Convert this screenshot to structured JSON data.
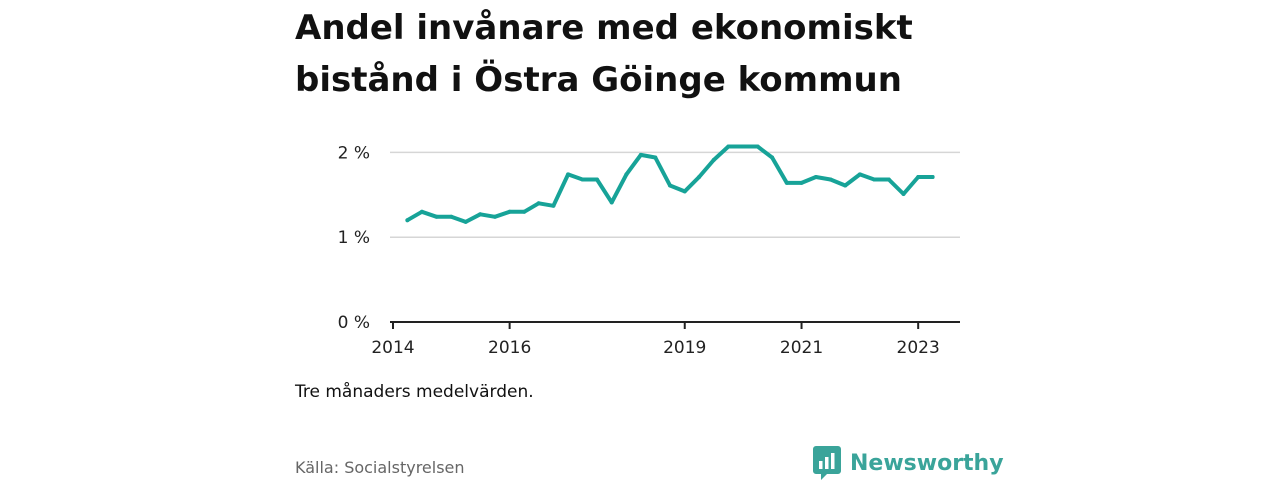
{
  "title": "Andel invånare med ekonomiskt bistånd i Östra Göinge kommun",
  "note": "Tre månaders medelvärden.",
  "source": "Källa: Socialstyrelsen",
  "brand": {
    "name": "Newsworthy",
    "color": "#3aa49a",
    "icon": "bar-chart-logo-icon"
  },
  "chart_data": {
    "type": "line",
    "title": "Andel invånare med ekonomiskt bistånd i Östra Göinge kommun",
    "xlabel": "",
    "ylabel": "",
    "ylim": [
      0,
      2.5
    ],
    "xlim": [
      "2014-01-01",
      "2023-09-01"
    ],
    "y_ticks": [
      {
        "value": 0,
        "label": "0 %"
      },
      {
        "value": 1,
        "label": "1 %"
      },
      {
        "value": 2,
        "label": "2 %"
      }
    ],
    "x_ticks": [
      {
        "value": "2014-01-01",
        "label": "2014"
      },
      {
        "value": "2016-01-01",
        "label": "2016"
      },
      {
        "value": "2019-01-01",
        "label": "2019"
      },
      {
        "value": "2021-01-01",
        "label": "2021"
      },
      {
        "value": "2023-01-01",
        "label": "2023"
      }
    ],
    "grid": true,
    "series": [
      {
        "color": "#17a398",
        "x": [
          "2014-04-01",
          "2014-07-01",
          "2014-10-01",
          "2015-01-01",
          "2015-04-01",
          "2015-07-01",
          "2015-10-01",
          "2016-01-01",
          "2016-04-01",
          "2016-07-01",
          "2016-10-01",
          "2017-01-01",
          "2017-04-01",
          "2017-07-01",
          "2017-10-01",
          "2018-01-01",
          "2018-04-01",
          "2018-07-01",
          "2018-10-01",
          "2019-01-01",
          "2019-04-01",
          "2019-07-01",
          "2019-10-01",
          "2020-01-01",
          "2020-04-01",
          "2020-07-01",
          "2020-10-01",
          "2021-01-01",
          "2021-04-01",
          "2021-07-01",
          "2021-10-01",
          "2022-01-01",
          "2022-04-01",
          "2022-07-01",
          "2022-10-01",
          "2023-01-01",
          "2023-04-01"
        ],
        "values": [
          1.2,
          1.3,
          1.24,
          1.24,
          1.18,
          1.27,
          1.24,
          1.3,
          1.3,
          1.4,
          1.37,
          1.74,
          1.68,
          1.68,
          1.41,
          1.74,
          1.97,
          1.94,
          1.61,
          1.54,
          1.71,
          1.91,
          2.07,
          2.07,
          2.07,
          1.94,
          1.64,
          1.64,
          1.71,
          1.68,
          1.61,
          1.74,
          1.68,
          1.68,
          1.51,
          1.71,
          1.71
        ]
      }
    ]
  }
}
